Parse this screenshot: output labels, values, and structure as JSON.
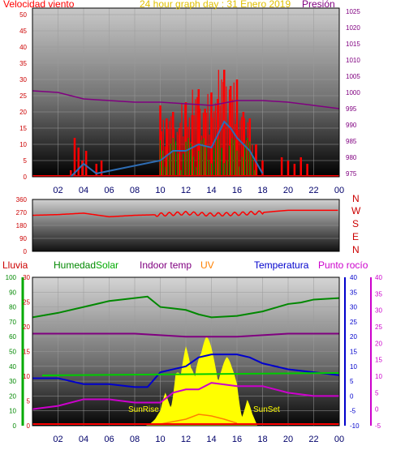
{
  "title": "24 hour graph day : 31 Enero 2019",
  "labels": {
    "wind": "Velocidad viento",
    "pressure": "Presión",
    "rain": "Lluvia",
    "humidity": "Humedad",
    "solar": "Solar",
    "indoor": "Indoor temp",
    "uv": "UV",
    "temp": "Temperatura",
    "dew": "Punto rocío",
    "sunrise": "SunRise",
    "sunset": "SunSet"
  },
  "compass": [
    "N",
    "W",
    "S",
    "E",
    "N"
  ],
  "colors": {
    "wind": "#ff0000",
    "windAvg": "#2e6db4",
    "windGreen": "#009900",
    "pressure": "#800080",
    "direction": "#ff0000",
    "rain": "#ff0000",
    "humidity": "#008800",
    "solar": "#ffff00",
    "indoor": "#800080",
    "uv": "#ff8000",
    "temp": "#0000cc",
    "dew": "#cc00cc",
    "greenLine": "#00cc00"
  },
  "chart_data": [
    {
      "type": "line",
      "panel": "wind-pressure",
      "x_ticks": [
        "02",
        "04",
        "06",
        "08",
        "10",
        "12",
        "14",
        "16",
        "18",
        "20",
        "22",
        "00"
      ],
      "y_left_ticks": [
        0,
        5,
        10,
        15,
        20,
        25,
        30,
        35,
        40,
        45,
        50
      ],
      "y_left_range": [
        0,
        52
      ],
      "y_right_ticks": [
        975,
        980,
        985,
        990,
        995,
        1000,
        1005,
        1010,
        1015,
        1020,
        1025
      ],
      "y_right_range": [
        974,
        1026
      ],
      "wind_gust": {
        "x": [
          3.0,
          3.3,
          3.6,
          3.9,
          4.2,
          5.0,
          5.4,
          10.0,
          10.5,
          11.0,
          11.5,
          12.0,
          12.5,
          13.0,
          13.5,
          14.0,
          14.5,
          15.0,
          15.5,
          16.0,
          16.5,
          17.0,
          17.5,
          18.0,
          19.5,
          20.0,
          20.5,
          21.0,
          21.5
        ],
        "y": [
          2,
          12,
          9,
          5,
          8,
          4,
          5,
          22,
          18,
          20,
          15,
          23,
          19,
          27,
          21,
          26,
          24,
          33,
          28,
          30,
          20,
          18,
          10,
          5,
          6,
          5,
          4,
          6,
          4
        ]
      },
      "wind_avg": {
        "x": [
          3,
          4,
          5,
          10,
          11,
          12,
          13,
          14,
          15,
          15.5,
          16,
          17,
          18
        ],
        "y": [
          0,
          4,
          1,
          5,
          8,
          8,
          10,
          9,
          17,
          15,
          12,
          8,
          1
        ]
      },
      "pressure": {
        "x": [
          0,
          2,
          4,
          6,
          8,
          10,
          12,
          14,
          16,
          18,
          20,
          22,
          24
        ],
        "y": [
          1000.5,
          1000,
          998,
          997.5,
          997,
          997,
          996.5,
          996,
          997.5,
          997.5,
          997,
          996,
          995
        ]
      }
    },
    {
      "type": "line",
      "panel": "wind-direction",
      "y_ticks": [
        0,
        90,
        180,
        270,
        360
      ],
      "y_range": [
        0,
        360
      ],
      "x": [
        0,
        2,
        4,
        6,
        8,
        10,
        12,
        14,
        16,
        18,
        20,
        22,
        24
      ],
      "y": [
        250,
        255,
        265,
        240,
        250,
        255,
        265,
        255,
        260,
        270,
        285,
        285,
        285
      ]
    },
    {
      "type": "line",
      "panel": "temperature-humidity",
      "y_humidity_ticks": [
        0,
        10,
        20,
        30,
        40,
        50,
        60,
        70,
        80,
        90,
        100
      ],
      "y_rain_ticks": [
        0,
        5,
        10,
        15,
        20,
        25,
        30
      ],
      "y_temp_ticks": [
        -10,
        -5,
        0,
        5,
        10,
        15,
        20,
        25,
        30,
        35,
        40
      ],
      "y_dew_ticks": [
        -5,
        0,
        5,
        10,
        15,
        20,
        25,
        30,
        35,
        40
      ],
      "humidity": {
        "x": [
          0,
          2,
          4,
          6,
          8,
          9,
          10,
          11,
          12,
          13,
          14,
          16,
          18,
          20,
          21,
          22,
          24
        ],
        "y": [
          73,
          76,
          80,
          84,
          86,
          87,
          80,
          79,
          78,
          75,
          73,
          74,
          77,
          82,
          83,
          85,
          86
        ]
      },
      "indoor": {
        "x": [
          0,
          4,
          8,
          12,
          16,
          20,
          24
        ],
        "y": [
          21,
          21,
          21,
          20,
          20,
          21,
          21
        ]
      },
      "temperature": {
        "x": [
          0,
          2,
          4,
          6,
          8,
          9,
          10,
          11,
          12,
          13,
          14,
          15,
          16,
          17,
          18,
          20,
          22,
          24
        ],
        "y": [
          6,
          6,
          4,
          4,
          3,
          3,
          8,
          9,
          10,
          13,
          14,
          14,
          14,
          13,
          11,
          9,
          8,
          7
        ]
      },
      "dew": {
        "x": [
          0,
          2,
          4,
          6,
          8,
          10,
          11,
          12,
          13,
          14,
          16,
          18,
          20,
          22,
          24
        ],
        "y": [
          0,
          1,
          3,
          3,
          2,
          2,
          5,
          6,
          6,
          8,
          7,
          7,
          5,
          4,
          4
        ]
      },
      "solar": {
        "x": [
          8.8,
          9.2,
          9.6,
          10.0,
          10.4,
          10.8,
          11.2,
          11.6,
          12.0,
          12.4,
          12.8,
          13.2,
          13.6,
          14.0,
          14.4,
          14.8,
          15.2,
          15.6,
          16.0,
          16.4,
          16.8,
          17.2,
          17.6
        ],
        "y": [
          0,
          2,
          5,
          10,
          25,
          20,
          45,
          35,
          55,
          50,
          62,
          55,
          60,
          58,
          55,
          50,
          48,
          40,
          35,
          10,
          20,
          8,
          0
        ]
      },
      "uv": {
        "x": [
          10,
          11,
          12,
          13,
          14,
          15,
          16
        ],
        "y": [
          0,
          0.3,
          0.6,
          1.2,
          1.0,
          0.6,
          0.1
        ]
      }
    }
  ]
}
